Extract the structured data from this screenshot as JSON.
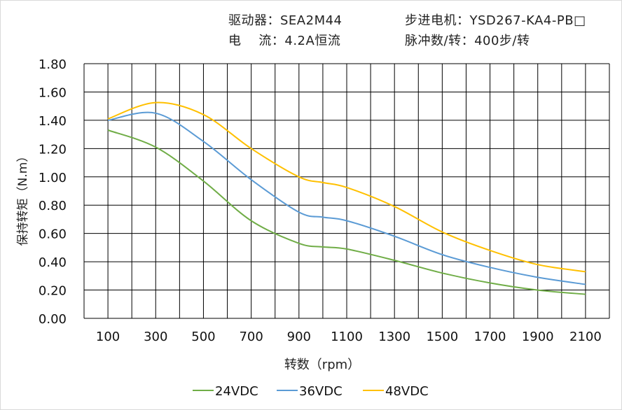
{
  "header": {
    "driver": "驱动器：SEA2M44",
    "motor": "步进电机：YSD267-KA4-PB□",
    "current": "电    流：4.2A恒流",
    "pulses": "脉冲数/转：400步/转"
  },
  "chart_data": {
    "type": "line",
    "xlabel": "转数（rpm）",
    "ylabel": "保持转矩（N.m）",
    "xlim": [
      0,
      2200
    ],
    "ylim": [
      0,
      1.8
    ],
    "x_ticks": [
      "100",
      "300",
      "500",
      "700",
      "900",
      "1100",
      "1300",
      "1500",
      "1700",
      "1900",
      "2100"
    ],
    "y_ticks": [
      "0.00",
      "0.20",
      "0.40",
      "0.60",
      "0.80",
      "1.00",
      "1.20",
      "1.40",
      "1.60",
      "1.80"
    ],
    "grid": true,
    "legend_position": "bottom",
    "x": [
      100,
      300,
      500,
      700,
      900,
      1000,
      1100,
      1300,
      1500,
      1700,
      1900,
      2100
    ],
    "series": [
      {
        "name": "24VDC",
        "color": "#70ad47",
        "values": [
          1.33,
          1.21,
          0.97,
          0.69,
          0.53,
          0.505,
          0.49,
          0.41,
          0.32,
          0.25,
          0.2,
          0.17
        ]
      },
      {
        "name": "36VDC",
        "color": "#5b9bd5",
        "values": [
          1.4,
          1.45,
          1.25,
          0.98,
          0.75,
          0.715,
          0.69,
          0.58,
          0.45,
          0.36,
          0.29,
          0.24
        ]
      },
      {
        "name": "48VDC",
        "color": "#ffc000",
        "values": [
          1.41,
          1.525,
          1.44,
          1.2,
          1.0,
          0.96,
          0.925,
          0.79,
          0.61,
          0.48,
          0.38,
          0.33
        ]
      }
    ]
  }
}
